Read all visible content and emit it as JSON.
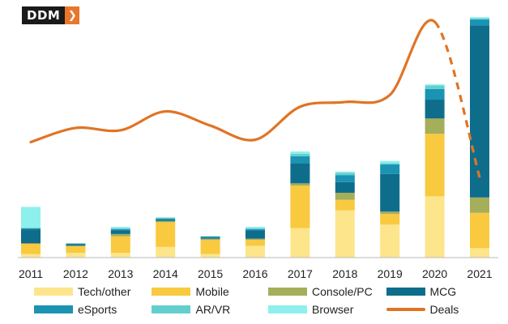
{
  "logo": {
    "text": "DDM",
    "arrow_icon": "chevron-right-icon"
  },
  "chart_data": {
    "type": "bar",
    "stacked": true,
    "categories": [
      "2011",
      "2012",
      "2013",
      "2014",
      "2015",
      "2016",
      "2017",
      "2018",
      "2019",
      "2020",
      "2021"
    ],
    "ylim": [
      0,
      100
    ],
    "grid": false,
    "legend_position": "bottom",
    "series": [
      {
        "name": "Tech/other",
        "color": "#fde58c",
        "values": [
          1.5,
          2,
          2,
          4.5,
          1.5,
          5,
          12.5,
          20,
          14,
          26,
          4
        ]
      },
      {
        "name": "Mobile",
        "color": "#f9c93f",
        "values": [
          4.5,
          3,
          7,
          10.5,
          6,
          2.5,
          18,
          4.5,
          4.5,
          26.5,
          15
        ]
      },
      {
        "name": "Console/PC",
        "color": "#a5ae5a",
        "values": [
          0,
          0,
          1,
          0.5,
          0.5,
          0.5,
          1,
          3,
          1,
          6.5,
          6.5
        ]
      },
      {
        "name": "MCG",
        "color": "#0f6d8c",
        "values": [
          6,
          0.5,
          1.5,
          0.5,
          0.5,
          3.5,
          8.5,
          4.5,
          16,
          8,
          73
        ]
      },
      {
        "name": "eSports",
        "color": "#1b93b3",
        "values": [
          0.5,
          0.5,
          0.5,
          0.5,
          0.5,
          0.5,
          3,
          3,
          4,
          4.5,
          2.5
        ]
      },
      {
        "name": "AR/VR",
        "color": "#62cfcf",
        "values": [
          0,
          0,
          0.5,
          0.5,
          0,
          0.5,
          1,
          1,
          0.5,
          1.5,
          0.5
        ]
      },
      {
        "name": "Browser",
        "color": "#8ef0ec",
        "values": [
          9,
          0,
          0.5,
          0,
          0,
          0.5,
          1,
          0.5,
          1,
          0.5,
          0.5
        ]
      }
    ],
    "line_series": {
      "name": "Deals",
      "color": "#e07424",
      "values": [
        49,
        55,
        54,
        62,
        56,
        50,
        64,
        66,
        69,
        100,
        34
      ],
      "dashed_from_index": 9
    }
  }
}
